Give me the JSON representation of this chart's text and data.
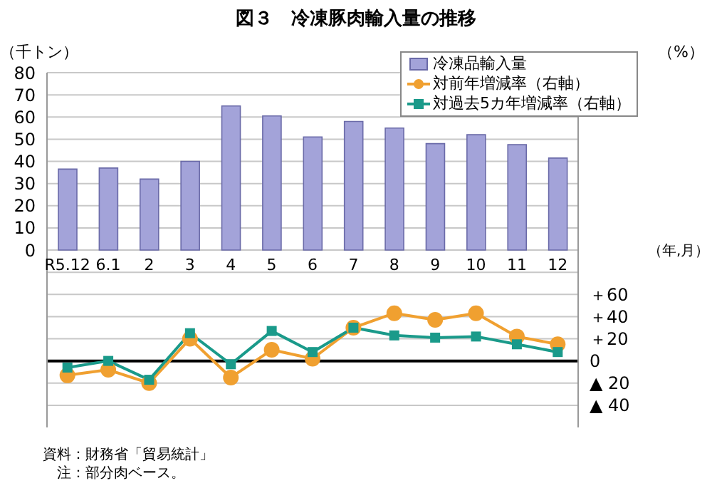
{
  "chart_data": {
    "type": "bar",
    "title": "図３　冷凍豚肉輸入量の推移",
    "ylabel": "（千トン）",
    "y2label": "（%）",
    "xlabel": "（年,月）",
    "categories": [
      "R5.12",
      "6.1",
      "2",
      "3",
      "4",
      "5",
      "6",
      "7",
      "8",
      "9",
      "10",
      "11",
      "12"
    ],
    "series": [
      {
        "name": "冷凍品輸入量",
        "color": "#a3a3d9",
        "values": [
          36.5,
          37,
          32,
          40,
          65,
          60.5,
          51,
          58,
          55,
          48,
          52,
          47.5,
          41.5
        ]
      },
      {
        "name": "対前年増減率（右軸）",
        "type": "line",
        "axis": "y2",
        "marker": "circle",
        "color": "#f0a030",
        "values": [
          -13,
          -8,
          -20,
          20,
          -15,
          10,
          2,
          30,
          43,
          37,
          43,
          22,
          15
        ]
      },
      {
        "name": "対過去5カ年増減率（右軸）",
        "type": "line",
        "axis": "y2",
        "marker": "square",
        "color": "#1a9a8a",
        "values": [
          -6,
          0,
          -17,
          25,
          -3,
          27,
          8,
          30,
          23,
          21,
          22,
          15,
          8
        ]
      }
    ],
    "ylim": [
      -80,
      80
    ],
    "yticks": [
      0,
      10,
      20,
      30,
      40,
      50,
      60,
      70,
      80
    ],
    "y2lim": [
      -60,
      260
    ],
    "y2ticks": [
      {
        "value": -40,
        "label": "▲ 40"
      },
      {
        "value": -20,
        "label": "▲ 20"
      },
      0,
      {
        "value": 20,
        "label": "＋20"
      },
      {
        "value": 40,
        "label": "＋40"
      },
      {
        "value": 60,
        "label": "＋60"
      },
      {
        "value": 80,
        "label": null
      }
    ],
    "ref_lines": [
      {
        "axis": "y2",
        "value": 0,
        "color": "#000000"
      }
    ],
    "grid": "y",
    "legend": "top right",
    "annotations": [
      "資料：財務省「貿易統計」",
      "　注：部分肉ベース。"
    ]
  }
}
